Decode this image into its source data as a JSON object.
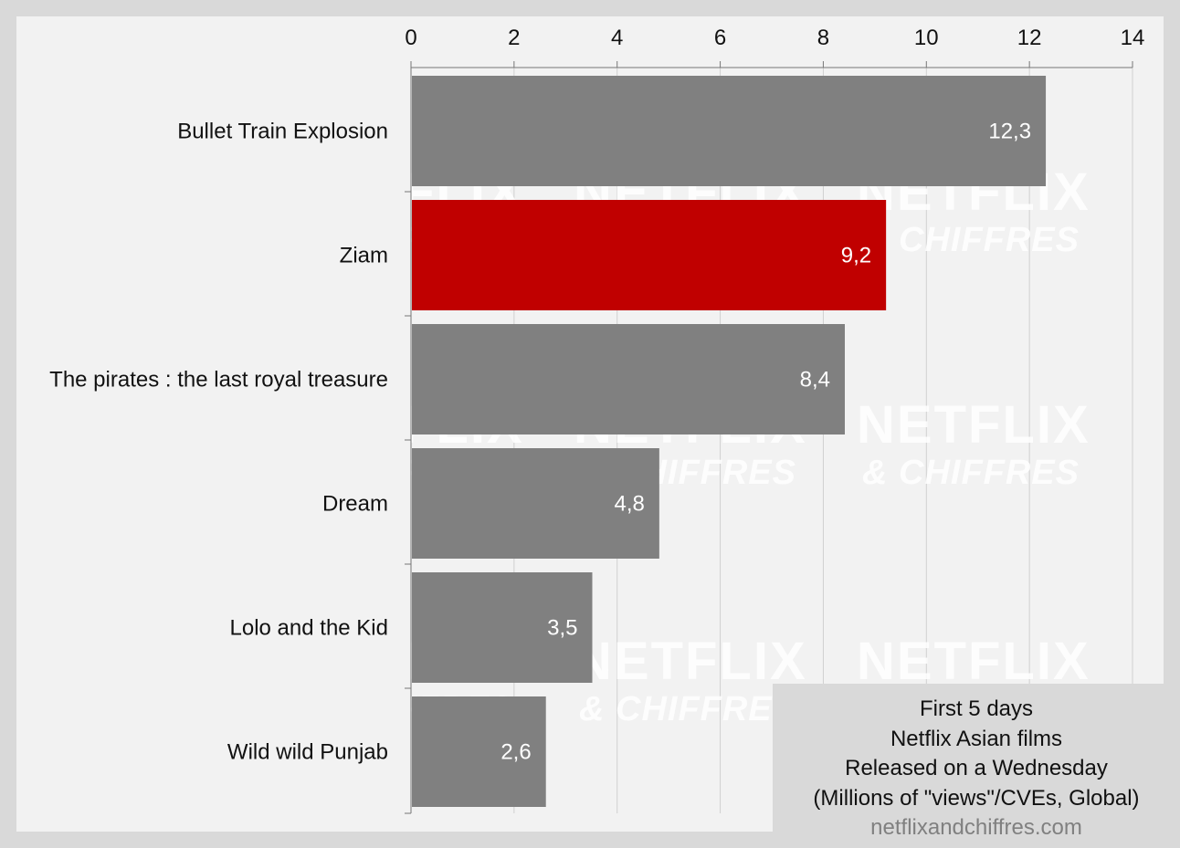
{
  "chart_data": {
    "type": "bar",
    "orientation": "horizontal",
    "categories": [
      "Bullet Train Explosion",
      "Ziam",
      "The pirates : the last royal treasure",
      "Dream",
      "Lolo and the Kid",
      "Wild wild Punjab"
    ],
    "values": [
      12.3,
      9.2,
      8.4,
      4.8,
      3.5,
      2.6
    ],
    "value_labels": [
      "12,3",
      "9,2",
      "8,4",
      "4,8",
      "3,5",
      "2,6"
    ],
    "highlight_index": 1,
    "xlim": [
      0,
      14
    ],
    "x_ticks": [
      "0",
      "2",
      "4",
      "6",
      "8",
      "10",
      "12",
      "14"
    ],
    "x_axis_position": "top",
    "grid": true,
    "colors": {
      "bar": "#808080",
      "highlight": "#c00000",
      "grid": "#d0d0d0"
    }
  },
  "info_box": {
    "lines": [
      "First 5 days",
      "Netflix Asian films",
      "Released on a Wednesday",
      "(Millions of \"views\"/CVEs, Global)"
    ],
    "site": "netflixandchiffres.com"
  },
  "watermark": {
    "line1": "NETFLIX",
    "line2": "& CHIFFRES"
  }
}
